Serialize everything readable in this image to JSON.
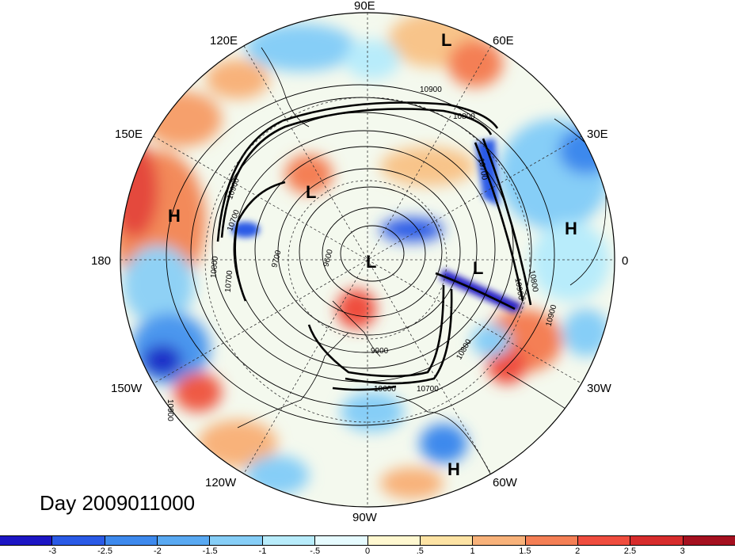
{
  "title": "Day 2009011000",
  "projection": "north-polar-stereographic",
  "longitude_labels": [
    {
      "text": "90E"
    },
    {
      "text": "60E"
    },
    {
      "text": "30E"
    },
    {
      "text": "0"
    },
    {
      "text": "30W"
    },
    {
      "text": "60W"
    },
    {
      "text": "90W"
    },
    {
      "text": "120W"
    },
    {
      "text": "150W"
    },
    {
      "text": "180"
    },
    {
      "text": "150E"
    },
    {
      "text": "120E"
    }
  ],
  "pressure_centers": [
    {
      "type": "L",
      "region": "Siberia"
    },
    {
      "type": "L",
      "region": "East Siberian Sea"
    },
    {
      "type": "L",
      "region": "Arctic Ocean"
    },
    {
      "type": "L",
      "region": "Greenland Sea"
    },
    {
      "type": "H",
      "region": "North Pacific"
    },
    {
      "type": "H",
      "region": "North Africa"
    },
    {
      "type": "H",
      "region": "South America"
    }
  ],
  "contour_labels": [
    "10900",
    "10800",
    "10700",
    "10900",
    "10700",
    "9700",
    "9600",
    "9900",
    "10600",
    "10700",
    "10800",
    "10900",
    "10900",
    "10800",
    "10700",
    "10800",
    "10900"
  ],
  "colorbar": {
    "colors": [
      "#1c15c4",
      "#2a5ae6",
      "#3d89ed",
      "#59a9f2",
      "#86cef7",
      "#b8ecfb",
      "#e6fbff",
      "#fff8d0",
      "#fde3a4",
      "#f8b27a",
      "#f47f55",
      "#ef4d3e",
      "#d72c2c",
      "#a5101f"
    ],
    "tick_labels": [
      "-3",
      "-2.5",
      "-2",
      "-1.5",
      "-1",
      "-.5",
      "0",
      ".5",
      "1",
      "1.5",
      "2",
      "2.5",
      "3"
    ]
  }
}
